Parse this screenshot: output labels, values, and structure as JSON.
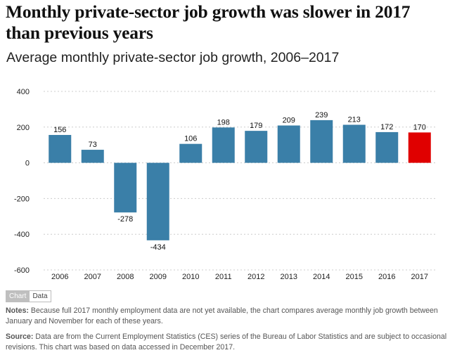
{
  "title": "Monthly private-sector job growth was slower in 2017 than previous years",
  "subtitle": "Average monthly private-sector job growth, 2006–2017",
  "toggle": {
    "chart_label": "Chart",
    "data_label": "Data"
  },
  "notes": {
    "label": "Notes:",
    "text": "Because full 2017 monthly employment data are not yet available, the chart compares average monthly job growth between January and November for each of these years."
  },
  "source": {
    "label": "Source:",
    "text": "Data are from the Current Employment Statistics (CES) series of the Bureau of Labor Statistics and are subject to occasional revisions. This chart was based on data accessed in December 2017."
  },
  "colors": {
    "bar": "#3a7fa8",
    "highlight": "#e00000",
    "grid": "#cccccc"
  },
  "chart_data": {
    "type": "bar",
    "title": "Average monthly private-sector job growth, 2006–2017",
    "categories": [
      "2006",
      "2007",
      "2008",
      "2009",
      "2010",
      "2011",
      "2012",
      "2013",
      "2014",
      "2015",
      "2016",
      "2017"
    ],
    "values": [
      156,
      73,
      -278,
      -434,
      106,
      198,
      179,
      209,
      239,
      213,
      172,
      170
    ],
    "labels": [
      "156",
      "73",
      "-278",
      "-434",
      "106",
      "198",
      "179",
      "209",
      "239",
      "213",
      "172",
      "170"
    ],
    "highlight_category": "2017",
    "ylim": [
      -600,
      400
    ],
    "yticks": [
      400,
      200,
      0,
      -200,
      -400,
      -600
    ],
    "ytick_labels": [
      "400",
      "200",
      "0",
      "-200",
      "-400",
      "-600"
    ],
    "xlabel": "",
    "ylabel": "",
    "grid": true
  }
}
